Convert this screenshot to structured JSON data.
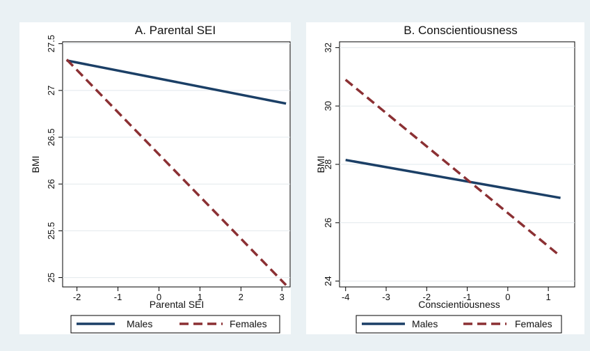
{
  "chart_data": [
    {
      "type": "line",
      "title": "A. Parental SEI",
      "xlabel": "Parental SEI",
      "ylabel": "BMI",
      "xlim": [
        -2.35,
        3.2
      ],
      "ylim": [
        24.9,
        27.52
      ],
      "xticks": [
        -2,
        -1,
        0,
        1,
        2,
        3
      ],
      "xtick_labels": [
        "-2",
        "-1",
        "0",
        "1",
        "2",
        "3"
      ],
      "yticks": [
        25,
        25.5,
        26,
        26.5,
        27,
        27.5
      ],
      "ytick_labels": [
        "25",
        "25.5",
        "26",
        "26.5",
        "27",
        "27.5"
      ],
      "grid": true,
      "series": [
        {
          "name": "Males",
          "x": [
            -2.25,
            3.1
          ],
          "y": [
            27.32,
            26.86
          ],
          "color": "#1b3f66",
          "dash": "solid"
        },
        {
          "name": "Females",
          "x": [
            -2.25,
            3.1
          ],
          "y": [
            27.33,
            24.92
          ],
          "color": "#8b3033",
          "dash": "dashed"
        }
      ],
      "legend_position": "bottom"
    },
    {
      "type": "line",
      "title": "B. Conscientiousness",
      "xlabel": "Conscientiousness",
      "ylabel": "BMI",
      "xlim": [
        -4.15,
        1.65
      ],
      "ylim": [
        23.8,
        32.2
      ],
      "xticks": [
        -4,
        -3,
        -2,
        -1,
        0,
        1
      ],
      "xtick_labels": [
        "-4",
        "-3",
        "-2",
        "-1",
        "0",
        "1"
      ],
      "yticks": [
        24,
        26,
        28,
        30,
        32
      ],
      "ytick_labels": [
        "24",
        "26",
        "28",
        "30",
        "32"
      ],
      "grid": true,
      "series": [
        {
          "name": "Males",
          "x": [
            -4,
            1.3
          ],
          "y": [
            28.15,
            26.85
          ],
          "color": "#1b3f66",
          "dash": "solid"
        },
        {
          "name": "Females",
          "x": [
            -4,
            1.3
          ],
          "y": [
            30.9,
            24.85
          ],
          "color": "#8b3033",
          "dash": "dashed"
        }
      ],
      "legend_position": "bottom"
    }
  ],
  "legend": {
    "males_label": "Males",
    "females_label": "Females"
  }
}
